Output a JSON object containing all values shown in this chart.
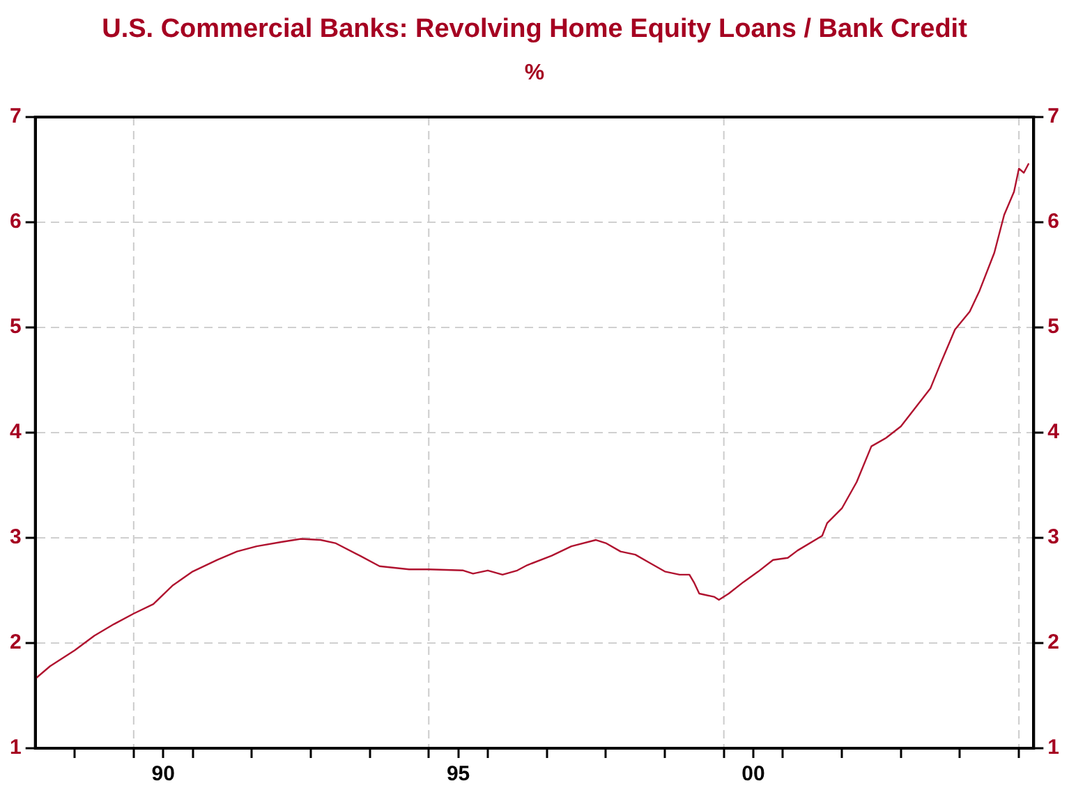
{
  "chart_data": {
    "type": "line",
    "title": "U.S. Commercial Banks: Revolving Home Equity Loans / Bank Credit",
    "subtitle": "%",
    "series": [
      {
        "color": "#b0122f",
        "x": [
          "1988-05",
          "1988-08",
          "1989-01",
          "1989-05",
          "1989-09",
          "1990-01",
          "1990-05",
          "1990-09",
          "1991-01",
          "1991-06",
          "1991-10",
          "1992-02",
          "1992-07",
          "1992-11",
          "1993-03",
          "1993-06",
          "1993-11",
          "1994-03",
          "1994-09",
          "1995-01",
          "1995-08",
          "1995-10",
          "1996-01",
          "1996-04",
          "1996-07",
          "1996-09",
          "1997-02",
          "1997-06",
          "1997-11",
          "1998-01",
          "1998-04",
          "1998-07",
          "1998-10",
          "1999-01",
          "1999-04",
          "1999-06",
          "1999-07",
          "1999-08",
          "1999-11",
          "1999-12",
          "2000-02",
          "2000-05",
          "2000-08",
          "2000-11",
          "2001-02",
          "2001-04",
          "2001-09",
          "2001-10",
          "2002-01",
          "2002-04",
          "2002-07",
          "2002-10",
          "2003-01",
          "2003-04",
          "2003-07",
          "2003-09",
          "2003-12",
          "2004-03",
          "2004-05",
          "2004-08",
          "2004-10",
          "2004-12",
          "2005-01",
          "2005-02",
          "2005-03"
        ],
        "values": [
          1.66,
          1.78,
          1.93,
          2.07,
          2.18,
          2.28,
          2.37,
          2.55,
          2.68,
          2.79,
          2.87,
          2.92,
          2.96,
          2.99,
          2.98,
          2.95,
          2.83,
          2.73,
          2.7,
          2.7,
          2.69,
          2.66,
          2.69,
          2.65,
          2.69,
          2.74,
          2.83,
          2.92,
          2.98,
          2.95,
          2.87,
          2.84,
          2.76,
          2.68,
          2.65,
          2.65,
          2.57,
          2.47,
          2.44,
          2.41,
          2.47,
          2.58,
          2.68,
          2.79,
          2.81,
          2.88,
          3.02,
          3.14,
          3.28,
          3.53,
          3.87,
          3.95,
          4.06,
          4.24,
          4.42,
          4.65,
          4.98,
          5.15,
          5.35,
          5.71,
          6.07,
          6.29,
          6.51,
          6.47,
          6.56
        ]
      }
    ],
    "xlim": [
      "1988-05",
      "2005-04"
    ],
    "xticks": [
      {
        "value": "1989",
        "label": null
      },
      {
        "value": "1990",
        "label": null
      },
      {
        "value": "1990-07",
        "label": "90"
      },
      {
        "value": "1991",
        "label": null
      },
      {
        "value": "1992",
        "label": null
      },
      {
        "value": "1993",
        "label": null
      },
      {
        "value": "1994",
        "label": null
      },
      {
        "value": "1995",
        "label": null
      },
      {
        "value": "1995-07",
        "label": "95"
      },
      {
        "value": "1996",
        "label": null
      },
      {
        "value": "1997",
        "label": null
      },
      {
        "value": "1998",
        "label": null
      },
      {
        "value": "1999",
        "label": null
      },
      {
        "value": "2000",
        "label": null
      },
      {
        "value": "2000-07",
        "label": "00"
      },
      {
        "value": "2001",
        "label": null
      },
      {
        "value": "2002",
        "label": null
      },
      {
        "value": "2003",
        "label": null
      },
      {
        "value": "2004",
        "label": null
      },
      {
        "value": "2005",
        "label": null
      }
    ],
    "ylim": [
      1,
      7
    ],
    "yticks": [
      1,
      2,
      3,
      4,
      5,
      6,
      7
    ],
    "y2lim": [
      1,
      7
    ],
    "y2ticks": [
      1,
      2,
      3,
      4,
      5,
      6,
      7
    ],
    "ref_lines": [
      {
        "axis": "x",
        "value": "1990",
        "color": "#cccccc",
        "line_style": "dashed"
      },
      {
        "axis": "x",
        "value": "1995",
        "color": "#cccccc",
        "line_style": "dashed"
      },
      {
        "axis": "x",
        "value": "2000",
        "color": "#cccccc",
        "line_style": "dashed"
      },
      {
        "axis": "x",
        "value": "2005",
        "color": "#cccccc",
        "line_style": "dashed"
      }
    ],
    "grid": "y",
    "legend": false,
    "marker": "none",
    "line_style": "solid"
  }
}
